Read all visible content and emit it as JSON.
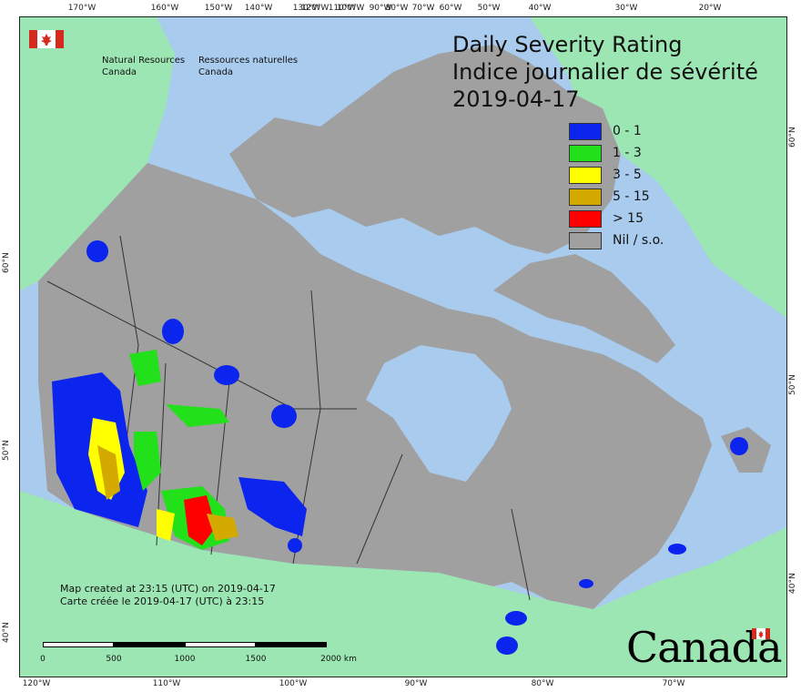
{
  "title": {
    "line1": "Daily Severity Rating",
    "line2": "Indice journalier de sévérité",
    "date": "2019-04-17"
  },
  "agency": {
    "en_line1": "Natural Resources",
    "en_line2": "Canada",
    "fr_line1": "Ressources naturelles",
    "fr_line2": "Canada"
  },
  "legend": [
    {
      "label": "0 - 1",
      "color": "#0b25ee"
    },
    {
      "label": "1 - 3",
      "color": "#22e01a"
    },
    {
      "label": "3 - 5",
      "color": "#ffff00"
    },
    {
      "label": "5 - 15",
      "color": "#d4aa00"
    },
    {
      "label": "> 15",
      "color": "#ff0000"
    },
    {
      "label": "Nil / s.o.",
      "color": "#a0a0a0"
    }
  ],
  "created": {
    "en": "Map created at 23:15 (UTC) on 2019-04-17",
    "fr": "Carte créée le 2019-04-17 (UTC) à 23:15"
  },
  "scalebar": {
    "labels": [
      "0",
      "500",
      "1000",
      "1500",
      "2000 km"
    ]
  },
  "wordmark": "Canada",
  "graticule": {
    "top": [
      "170°W",
      "160°W",
      "150°W",
      "140°W",
      "130°W",
      "120°W",
      "110°W",
      "100°W",
      "90°W",
      "80°W",
      "70°W",
      "60°W",
      "50°W",
      "40°W",
      "30°W",
      "20°W"
    ],
    "bottom": [
      "120°W",
      "110°W",
      "100°W",
      "90°W",
      "80°W",
      "70°W"
    ],
    "left": [
      "60°N",
      "50°N",
      "40°N"
    ],
    "right": [
      "60°N",
      "50°N",
      "40°N"
    ]
  },
  "colors": {
    "ocean": "#a9cbee",
    "land_outside": "#9ce6b4",
    "canada": "#a0a0a0",
    "borders": "#333333"
  }
}
